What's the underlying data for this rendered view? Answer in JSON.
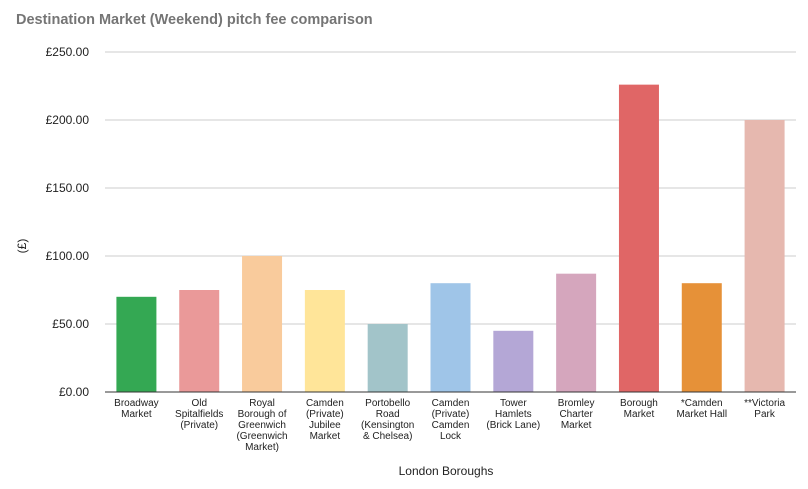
{
  "chart_data": {
    "type": "bar",
    "title": "Destination Market (Weekend) pitch fee comparison",
    "xlabel": "London Boroughs",
    "ylabel": "(£)",
    "ylim": [
      0,
      250
    ],
    "yticks": [
      "£0.00",
      "£50.00",
      "£100.00",
      "£150.00",
      "£200.00",
      "£250.00"
    ],
    "grid": true,
    "legend": "none",
    "categories": [
      [
        "Broadway",
        "Market"
      ],
      [
        "Old",
        "Spitalfields",
        "(Private)"
      ],
      [
        "Royal",
        "Borough of",
        "Greenwich",
        "(Greenwich",
        "Market)"
      ],
      [
        "Camden",
        "(Private)",
        "Jubilee",
        "Market"
      ],
      [
        "Portobello",
        "Road",
        "(Kensington",
        "& Chelsea)"
      ],
      [
        "Camden",
        "(Private)",
        "Camden",
        "Lock"
      ],
      [
        "Tower",
        "Hamlets",
        "(Brick Lane)"
      ],
      [
        "Bromley",
        "Charter",
        "Market"
      ],
      [
        "Borough",
        "Market"
      ],
      [
        "*Camden",
        "Market Hall"
      ],
      [
        "**Victoria",
        "Park"
      ]
    ],
    "values": [
      70,
      75,
      100,
      75,
      50,
      80,
      45,
      87,
      226,
      80,
      200
    ],
    "colors": [
      "#34a853",
      "#ea9999",
      "#f9cb9c",
      "#ffe599",
      "#a2c4c9",
      "#9fc5e8",
      "#b4a7d6",
      "#d5a6bd",
      "#e06666",
      "#e69138",
      "#e6b8af"
    ]
  }
}
